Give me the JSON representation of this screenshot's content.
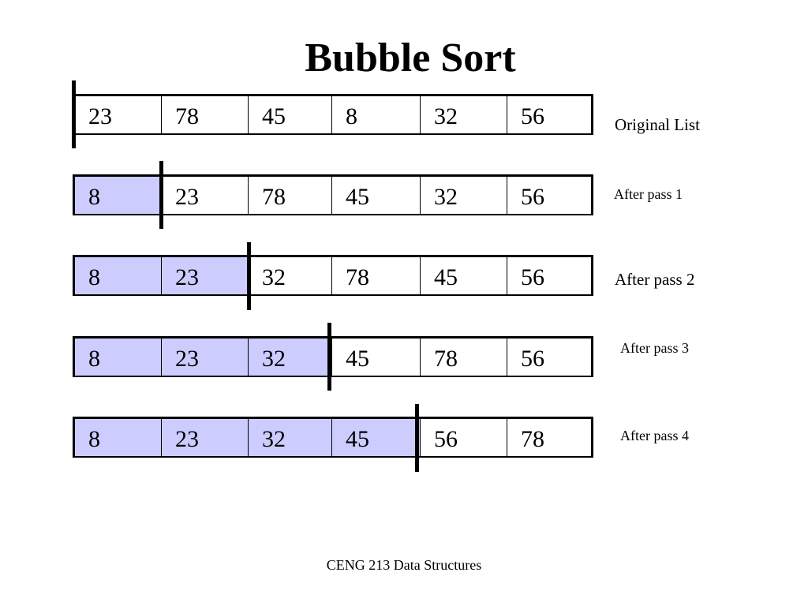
{
  "title": "Bubble Sort",
  "footer": "CENG 213 Data Structures",
  "rows": [
    {
      "label": "Original List",
      "values": [
        "23",
        "78",
        "45",
        "8",
        "32",
        "56"
      ],
      "sorted_count": 0
    },
    {
      "label": "After pass 1",
      "values": [
        "8",
        "23",
        "78",
        "45",
        "32",
        "56"
      ],
      "sorted_count": 1
    },
    {
      "label": "After pass 2",
      "values": [
        "8",
        "23",
        "32",
        "78",
        "45",
        "56"
      ],
      "sorted_count": 2
    },
    {
      "label": "After pass 3",
      "values": [
        "8",
        "23",
        "32",
        "45",
        "78",
        "56"
      ],
      "sorted_count": 3
    },
    {
      "label": "After pass 4",
      "values": [
        "8",
        "23",
        "32",
        "45",
        "56",
        "78"
      ],
      "sorted_count": 4
    }
  ],
  "colors": {
    "sorted_fill": "#ccccff",
    "border": "#000000"
  }
}
